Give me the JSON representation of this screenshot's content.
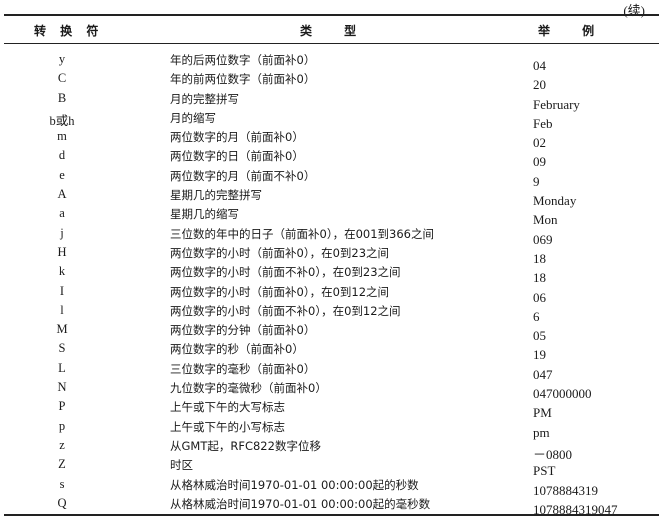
{
  "continued": "(续)",
  "headers": [
    "转 换 符",
    "类 型",
    "举 例"
  ],
  "rows": [
    [
      "y",
      "年的后两位数字（前面补0）",
      "04"
    ],
    [
      "C",
      "年的前两位数字（前面补0）",
      "20"
    ],
    [
      "B",
      "月的完整拼写",
      "February"
    ],
    [
      "b或h",
      "月的缩写",
      "Feb"
    ],
    [
      "m",
      "两位数字的月（前面补0）",
      "02"
    ],
    [
      "d",
      "两位数字的日（前面补0）",
      "09"
    ],
    [
      "e",
      "两位数字的月（前面不补0）",
      "9"
    ],
    [
      "A",
      "星期几的完整拼写",
      "Monday"
    ],
    [
      "a",
      "星期几的缩写",
      "Mon"
    ],
    [
      "j",
      "三位数的年中的日子（前面补0），在001到366之间",
      "069"
    ],
    [
      "H",
      "两位数字的小时（前面补0），在0到23之间",
      "18"
    ],
    [
      "k",
      "两位数字的小时（前面不补0），在0到23之间",
      "18"
    ],
    [
      "I",
      "两位数字的小时（前面补0），在0到12之间",
      "06"
    ],
    [
      "l",
      "两位数字的小时（前面不补0），在0到12之间",
      "6"
    ],
    [
      "M",
      "两位数字的分钟（前面补0）",
      "05"
    ],
    [
      "S",
      "两位数字的秒（前面补0）",
      "19"
    ],
    [
      "L",
      "三位数字的毫秒（前面补0）",
      "047"
    ],
    [
      "N",
      "九位数字的毫微秒（前面补0）",
      "047000000"
    ],
    [
      "P",
      "上午或下午的大写标志",
      "PM"
    ],
    [
      "p",
      "上午或下午的小写标志",
      "pm"
    ],
    [
      "z",
      "从GMT起，RFC822数字位移",
      "－0800"
    ],
    [
      "Z",
      "时区",
      "PST"
    ],
    [
      "s",
      "从格林威治时间1970-01-01 00:00:00起的秒数",
      "1078884319"
    ],
    [
      "Q",
      "从格林威治时间1970-01-01 00:00:00起的毫秒数",
      "1078884319047"
    ]
  ]
}
